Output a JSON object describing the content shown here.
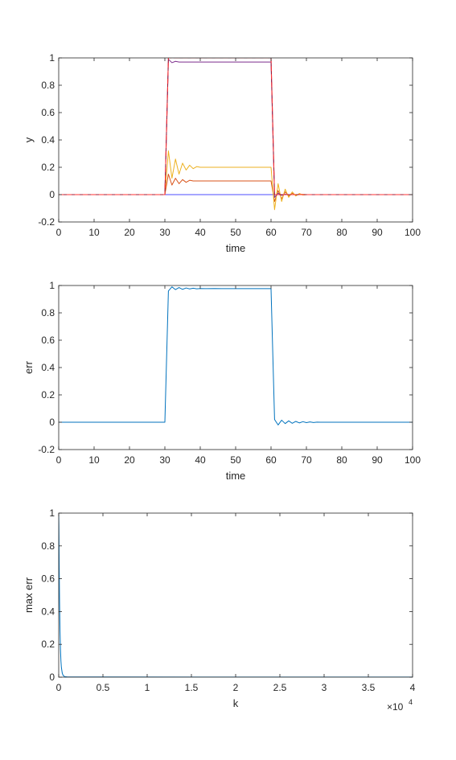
{
  "chart_data": [
    {
      "type": "line",
      "xlabel": "time",
      "ylabel": "y",
      "xlim": [
        0,
        100
      ],
      "ylim": [
        -0.2,
        1
      ],
      "xticks": [
        0,
        10,
        20,
        30,
        40,
        50,
        60,
        70,
        80,
        90,
        100
      ],
      "yticks": [
        -0.2,
        0,
        0.2,
        0.4,
        0.6,
        0.8,
        1
      ],
      "xtick_labels": [
        "0",
        "10",
        "20",
        "30",
        "40",
        "50",
        "60",
        "70",
        "80",
        "90",
        "100"
      ],
      "ytick_labels": [
        "-0.2",
        "0",
        "0.2",
        "0.4",
        "0.6",
        "0.8",
        "1"
      ],
      "grid": false,
      "series": [
        {
          "color": "#4d4dff",
          "style": "solid",
          "x": [
            0,
            100
          ],
          "y": [
            0,
            0
          ]
        },
        {
          "color": "#d95319",
          "style": "solid",
          "x": [
            0,
            30,
            31,
            32,
            33,
            34,
            35,
            36,
            37,
            38,
            40,
            60,
            61,
            62,
            63,
            64,
            65,
            66,
            67,
            68,
            70,
            100
          ],
          "y": [
            0,
            0,
            0.15,
            0.07,
            0.12,
            0.08,
            0.11,
            0.09,
            0.105,
            0.1,
            0.1,
            0.1,
            -0.05,
            0.03,
            -0.03,
            0.02,
            -0.01,
            0.01,
            -0.005,
            0.003,
            0,
            0
          ]
        },
        {
          "color": "#edb120",
          "style": "solid",
          "x": [
            0,
            30,
            31,
            32,
            33,
            34,
            35,
            36,
            37,
            38,
            39,
            40,
            60,
            61,
            62,
            63,
            64,
            65,
            66,
            67,
            68,
            69,
            70,
            100
          ],
          "y": [
            0,
            0,
            0.32,
            0.12,
            0.26,
            0.15,
            0.23,
            0.18,
            0.215,
            0.19,
            0.205,
            0.2,
            0.2,
            -0.11,
            0.08,
            -0.05,
            0.04,
            -0.02,
            0.02,
            -0.01,
            0.008,
            -0.003,
            0,
            0
          ]
        },
        {
          "color": "#7e2f8e",
          "style": "solid",
          "x": [
            0,
            30,
            31,
            32,
            33,
            34,
            35,
            60,
            61,
            62,
            63,
            64,
            65,
            66,
            100
          ],
          "y": [
            0,
            0,
            0.99,
            0.965,
            0.975,
            0.97,
            0.97,
            0.97,
            -0.02,
            0.01,
            -0.005,
            0.003,
            0,
            0,
            0
          ]
        },
        {
          "color": "#a2142f",
          "style": "solid",
          "x": [
            0,
            30,
            31,
            32,
            33,
            60,
            61,
            62,
            100
          ],
          "y": [
            0,
            0,
            1.0,
            1.003,
            1.0,
            1.0,
            0,
            0,
            0
          ]
        },
        {
          "color": "#ff3333",
          "style": "dashed",
          "x": [
            0,
            30,
            31,
            60,
            61,
            100
          ],
          "y": [
            0,
            0,
            1,
            1,
            0,
            0
          ]
        }
      ]
    },
    {
      "type": "line",
      "xlabel": "time",
      "ylabel": "err",
      "xlim": [
        0,
        100
      ],
      "ylim": [
        -0.2,
        1
      ],
      "xticks": [
        0,
        10,
        20,
        30,
        40,
        50,
        60,
        70,
        80,
        90,
        100
      ],
      "yticks": [
        -0.2,
        0,
        0.2,
        0.4,
        0.6,
        0.8,
        1
      ],
      "xtick_labels": [
        "0",
        "10",
        "20",
        "30",
        "40",
        "50",
        "60",
        "70",
        "80",
        "90",
        "100"
      ],
      "ytick_labels": [
        "-0.2",
        "0",
        "0.2",
        "0.4",
        "0.6",
        "0.8",
        "1"
      ],
      "grid": false,
      "series": [
        {
          "color": "#0072bd",
          "style": "solid",
          "x": [
            0,
            30,
            31,
            32,
            33,
            34,
            35,
            36,
            37,
            38,
            39,
            40,
            42,
            44,
            46,
            60,
            61,
            62,
            63,
            64,
            65,
            66,
            67,
            68,
            69,
            70,
            71,
            72,
            73,
            74,
            75,
            100
          ],
          "y": [
            0,
            0,
            0.96,
            0.99,
            0.97,
            0.985,
            0.972,
            0.982,
            0.975,
            0.98,
            0.976,
            0.978,
            0.977,
            0.978,
            0.977,
            0.977,
            0.02,
            -0.02,
            0.015,
            -0.01,
            0.01,
            -0.008,
            0.006,
            -0.005,
            0.004,
            -0.003,
            0.002,
            -0.002,
            0.001,
            0,
            0,
            0
          ]
        }
      ]
    },
    {
      "type": "line",
      "xlabel": "k",
      "ylabel": "max err",
      "xlim": [
        0,
        40000
      ],
      "ylim": [
        0,
        1
      ],
      "xticks": [
        0,
        5000,
        10000,
        15000,
        20000,
        25000,
        30000,
        35000,
        40000
      ],
      "yticks": [
        0,
        0.2,
        0.4,
        0.6,
        0.8,
        1
      ],
      "xtick_labels": [
        "0",
        "0.5",
        "1",
        "1.5",
        "2",
        "2.5",
        "3",
        "3.5",
        "4"
      ],
      "ytick_labels": [
        "0",
        "0.2",
        "0.4",
        "0.6",
        "0.8",
        "1"
      ],
      "x_multiplier_base": "×10",
      "x_multiplier_exp": "4",
      "grid": false,
      "series": [
        {
          "color": "#0072bd",
          "style": "solid",
          "x": [
            0,
            20,
            50,
            100,
            150,
            200,
            250,
            300,
            400,
            500,
            700,
            1000,
            40000
          ],
          "y": [
            1.0,
            0.92,
            0.7,
            0.45,
            0.28,
            0.17,
            0.1,
            0.06,
            0.025,
            0.01,
            0.003,
            0.001,
            0.0005
          ]
        }
      ]
    }
  ]
}
